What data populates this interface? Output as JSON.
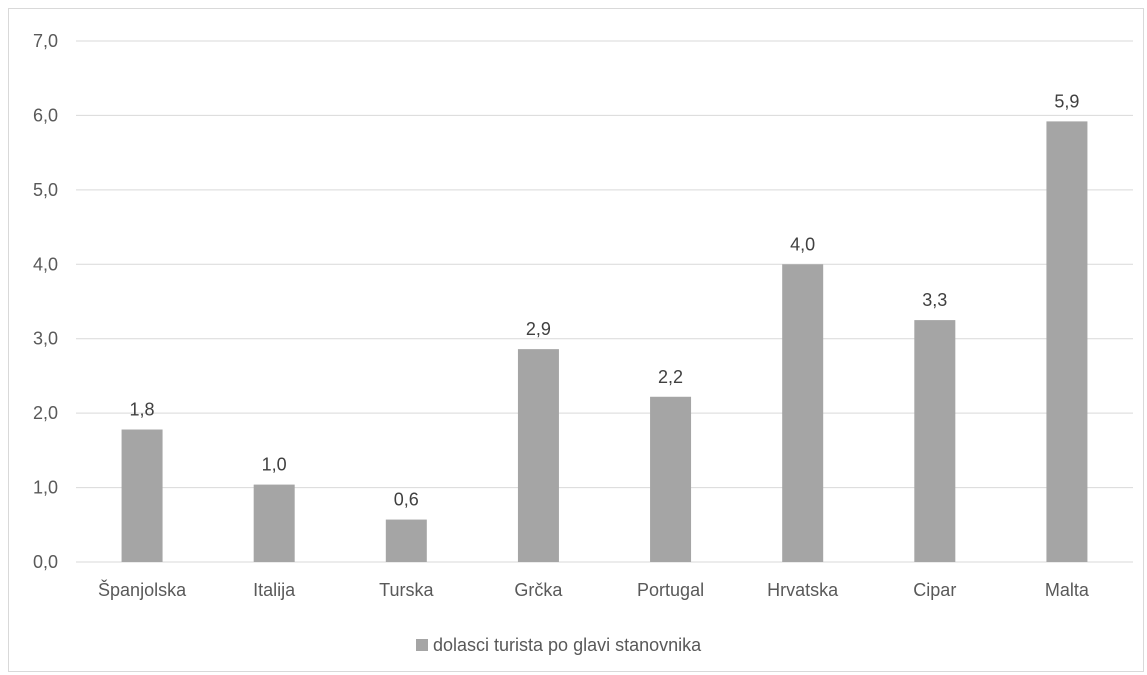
{
  "chart_data": {
    "type": "bar",
    "categories": [
      "Španjolska",
      "Italija",
      "Turska",
      "Grčka",
      "Portugal",
      "Hrvatska",
      "Cipar",
      "Malta"
    ],
    "series": [
      {
        "name": "dolasci turista po glavi stanovnika",
        "values": [
          1.78,
          1.04,
          0.57,
          2.86,
          2.22,
          4.0,
          3.25,
          5.92
        ],
        "labels": [
          "1,8",
          "1,0",
          "0,6",
          "2,9",
          "2,2",
          "4,0",
          "3,3",
          "5,9"
        ],
        "color": "#a5a5a5"
      }
    ],
    "y_ticks": [
      "0,0",
      "1,0",
      "2,0",
      "3,0",
      "4,0",
      "5,0",
      "6,0",
      "7,0"
    ],
    "ylim": [
      0,
      7
    ],
    "grid": true,
    "legend_position": "bottom"
  }
}
